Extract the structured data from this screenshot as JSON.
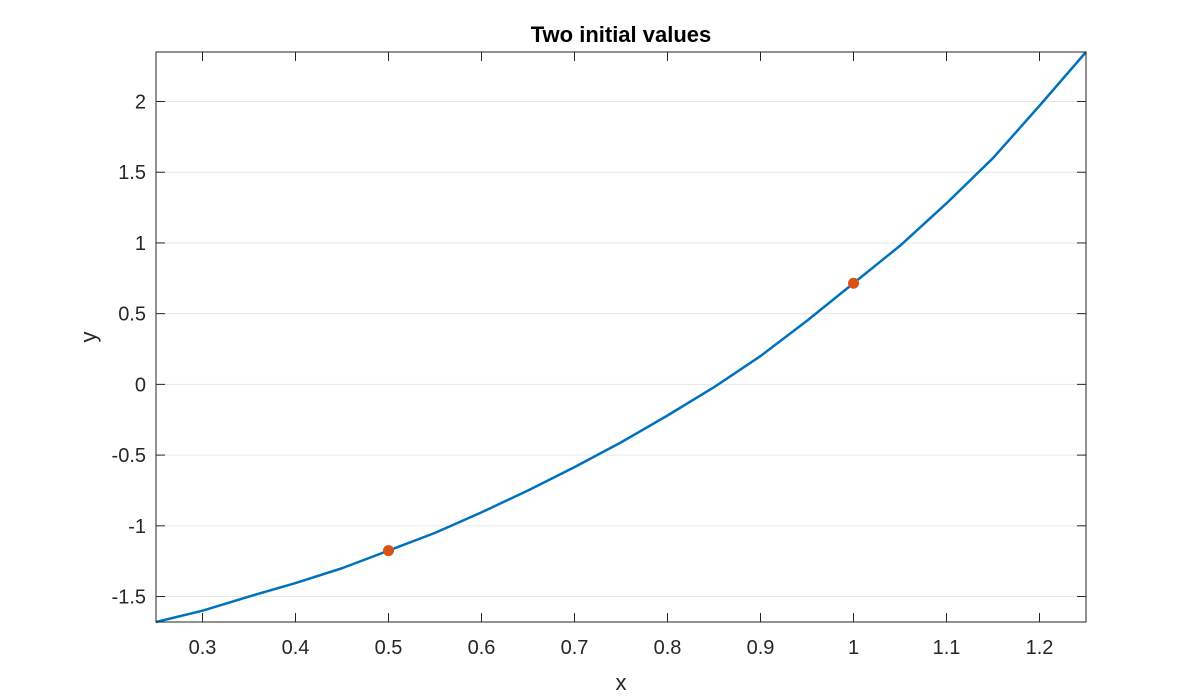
{
  "chart_data": {
    "type": "line",
    "title": "Two initial values",
    "xlabel": "x",
    "ylabel": "y",
    "xlim": [
      0.25,
      1.25
    ],
    "ylim": [
      -1.68,
      2.35
    ],
    "grid": "horizontal",
    "x_ticks": [
      0.3,
      0.4,
      0.5,
      0.6,
      0.7,
      0.8,
      0.9,
      1.0,
      1.1,
      1.2
    ],
    "x_tick_labels": [
      "0.3",
      "0.4",
      "0.5",
      "0.6",
      "0.7",
      "0.8",
      "0.9",
      "1",
      "1.1",
      "1.2"
    ],
    "y_ticks": [
      -1.5,
      -1,
      -0.5,
      0,
      0.5,
      1,
      1.5,
      2
    ],
    "y_tick_labels": [
      "-1.5",
      "-1",
      "-0.5",
      "0",
      "0.5",
      "1",
      "1.5",
      "2"
    ],
    "series": [
      {
        "kind": "line",
        "color": "#0072BD",
        "x": [
          0.25,
          0.3,
          0.35,
          0.4,
          0.45,
          0.5,
          0.55,
          0.6,
          0.65,
          0.7,
          0.75,
          0.8,
          0.85,
          0.9,
          0.95,
          1.0,
          1.05,
          1.1,
          1.15,
          1.2,
          1.25
        ],
        "y": [
          -1.68,
          -1.6,
          -1.5,
          -1.405,
          -1.3,
          -1.175,
          -1.05,
          -0.905,
          -0.75,
          -0.585,
          -0.41,
          -0.22,
          -0.02,
          0.2,
          0.45,
          0.715,
          0.98,
          1.28,
          1.6,
          1.97,
          2.35
        ]
      },
      {
        "kind": "points",
        "color": "#D95319",
        "x": [
          0.5,
          1.0
        ],
        "y": [
          -1.175,
          0.715
        ]
      }
    ]
  }
}
